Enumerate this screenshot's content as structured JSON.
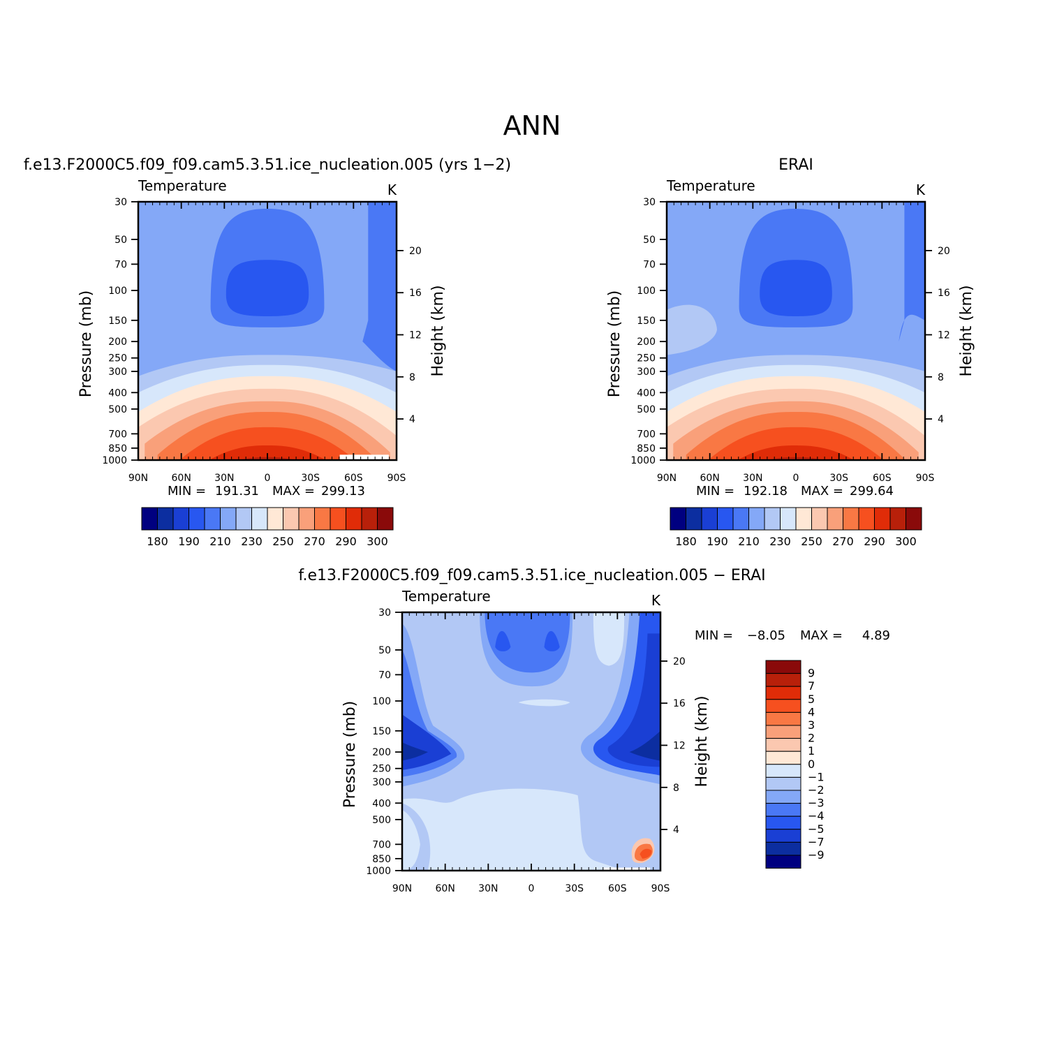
{
  "page_title": "ANN",
  "chart_data": [
    {
      "type": "heatmap",
      "title": "f.e13.F2000C5.f09_f09.cam5.3.51.ice_nucleation.005 (yrs 1−2)",
      "left_string": "Temperature",
      "right_string": "K",
      "ylabel": "Pressure (mb)",
      "ylabel_right": "Height (km)",
      "xticks": [
        "90N",
        "60N",
        "30N",
        "0",
        "30S",
        "60S",
        "90S"
      ],
      "yticks": [
        "30",
        "50",
        "70",
        "100",
        "150",
        "200",
        "250",
        "300",
        "400",
        "500",
        "700",
        "850",
        "1000"
      ],
      "yticks_right": [
        "20",
        "16",
        "12",
        "8",
        "4"
      ],
      "ylim": [
        1000,
        30
      ],
      "xlim": [
        "90N",
        "90S"
      ],
      "min_label": "MIN =",
      "min_value": "191.31",
      "max_label": "MAX =",
      "max_value": "299.13",
      "colorbar_labels": [
        "180",
        "190",
        "210",
        "230",
        "250",
        "270",
        "290",
        "300"
      ]
    },
    {
      "type": "heatmap",
      "title": "ERAI",
      "left_string": "Temperature",
      "right_string": "K",
      "ylabel": "Pressure (mb)",
      "ylabel_right": "Height (km)",
      "xticks": [
        "90N",
        "60N",
        "30N",
        "0",
        "30S",
        "60S",
        "90S"
      ],
      "yticks": [
        "30",
        "50",
        "70",
        "100",
        "150",
        "200",
        "250",
        "300",
        "400",
        "500",
        "700",
        "850",
        "1000"
      ],
      "yticks_right": [
        "20",
        "16",
        "12",
        "8",
        "4"
      ],
      "ylim": [
        1000,
        30
      ],
      "xlim": [
        "90N",
        "90S"
      ],
      "min_label": "MIN =",
      "min_value": "192.18",
      "max_label": "MAX =",
      "max_value": "299.64",
      "colorbar_labels": [
        "180",
        "190",
        "210",
        "230",
        "250",
        "270",
        "290",
        "300"
      ]
    },
    {
      "type": "heatmap",
      "title": "f.e13.F2000C5.f09_f09.cam5.3.51.ice_nucleation.005 − ERAI",
      "left_string": "Temperature",
      "right_string": "K",
      "ylabel": "Pressure (mb)",
      "ylabel_right": "Height (km)",
      "xticks": [
        "90N",
        "60N",
        "30N",
        "0",
        "30S",
        "60S",
        "90S"
      ],
      "yticks": [
        "30",
        "50",
        "70",
        "100",
        "150",
        "200",
        "250",
        "300",
        "400",
        "500",
        "700",
        "850",
        "1000"
      ],
      "yticks_right": [
        "20",
        "16",
        "12",
        "8",
        "4"
      ],
      "ylim": [
        1000,
        30
      ],
      "xlim": [
        "90N",
        "90S"
      ],
      "min_label": "MIN =",
      "min_value": "−8.05",
      "max_label": "MAX =",
      "max_value": "4.89",
      "colorbar_labels": [
        "9",
        "7",
        "5",
        "4",
        "3",
        "2",
        "1",
        "0",
        "−1",
        "−2",
        "−3",
        "−4",
        "−5",
        "−7",
        "−9"
      ]
    }
  ],
  "colors": {
    "scale": [
      "#000080",
      "#0c2ea0",
      "#1a3fd4",
      "#2857f0",
      "#4a78f5",
      "#84a8f7",
      "#b2c8f5",
      "#d7e7fb",
      "#ffe8d6",
      "#fbc8b0",
      "#f9a07a",
      "#f97844",
      "#f6501f",
      "#e02c08",
      "#b8200a",
      "#8a0a0a"
    ]
  }
}
